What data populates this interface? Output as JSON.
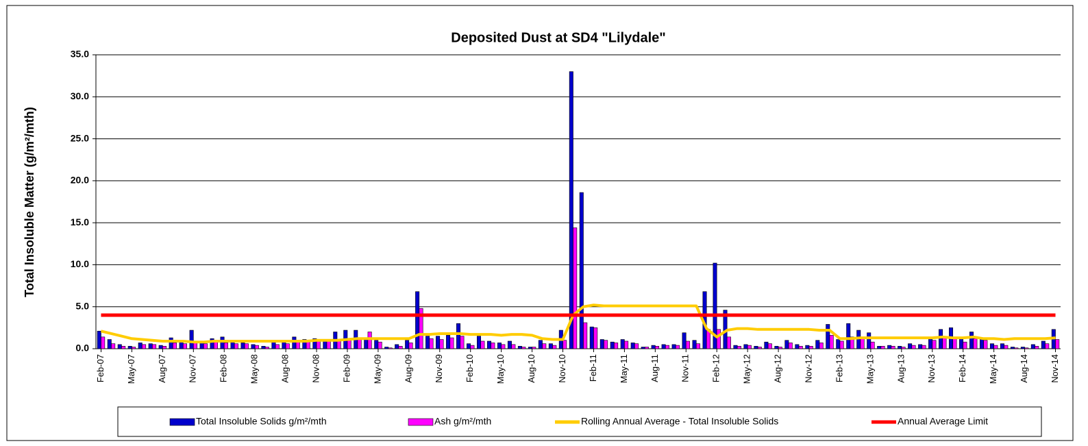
{
  "chart_data": {
    "type": "bar",
    "title": "Deposited Dust at SD4 \"Lilydale\"",
    "y_label": "Total Insoluble Matter  (g/m²/mth)",
    "categories": [
      "Feb-07",
      null,
      null,
      "May-07",
      null,
      null,
      "Aug-07",
      null,
      null,
      "Nov-07",
      null,
      null,
      "Feb-08",
      null,
      null,
      "May-08",
      null,
      null,
      "Aug-08",
      null,
      null,
      "Nov-08",
      null,
      null,
      "Feb-09",
      null,
      null,
      "May-09",
      null,
      null,
      "Aug-09",
      null,
      null,
      "Nov-09",
      null,
      null,
      "Feb-10",
      null,
      null,
      "May-10",
      null,
      null,
      "Aug-10",
      null,
      null,
      "Nov-10",
      null,
      null,
      "Feb-11",
      null,
      null,
      "May-11",
      null,
      null,
      "Aug-11",
      null,
      null,
      "Nov-11",
      null,
      null,
      "Feb-12",
      null,
      null,
      "May-12",
      null,
      null,
      "Aug-12",
      null,
      null,
      "Nov-12",
      null,
      null,
      "Feb-13",
      null,
      null,
      "May-13",
      null,
      null,
      "Aug-13",
      null,
      null,
      "Nov-13",
      null,
      null,
      "Feb-14",
      null,
      null,
      "May-14",
      null,
      null,
      "Aug-14",
      null,
      null,
      "Nov-14"
    ],
    "series": [
      {
        "name": "Total Insoluble Solids  g/m²/mth",
        "type": "bar",
        "color": "#0000cc",
        "values": [
          2.1,
          1.1,
          0.5,
          0.3,
          0.7,
          0.6,
          0.4,
          1.3,
          0.8,
          2.2,
          0.9,
          1.2,
          1.4,
          0.8,
          0.7,
          0.5,
          0.3,
          0.8,
          0.8,
          1.4,
          1.1,
          1.2,
          1.1,
          2.0,
          2.2,
          2.2,
          1.1,
          1.0,
          0.2,
          0.5,
          1.0,
          6.8,
          1.5,
          1.5,
          1.6,
          3.0,
          0.6,
          1.5,
          0.9,
          0.7,
          0.9,
          0.3,
          0.2,
          1.0,
          0.6,
          2.2,
          33.0,
          18.6,
          2.6,
          1.1,
          0.8,
          1.1,
          0.7,
          0.2,
          0.4,
          0.5,
          0.5,
          1.9,
          1.0,
          6.8,
          10.2,
          4.6,
          0.4,
          0.5,
          0.3,
          0.8,
          0.3,
          1.0,
          0.5,
          0.4,
          1.0,
          2.9,
          1.1,
          3.0,
          2.2,
          1.9,
          0.3,
          0.4,
          0.3,
          0.6,
          0.5,
          1.2,
          2.3,
          2.5,
          1.2,
          2.0,
          1.3,
          0.6,
          0.6,
          0.2,
          0.2,
          0.5,
          0.9,
          2.3
        ]
      },
      {
        "name": "Ash  g/m²/mth",
        "type": "bar",
        "color": "#ff00ff",
        "values": [
          1.4,
          0.6,
          0.3,
          0.2,
          0.5,
          0.5,
          0.3,
          0.7,
          0.6,
          0.8,
          0.6,
          0.8,
          0.7,
          0.6,
          0.6,
          0.4,
          0.2,
          0.5,
          0.6,
          0.9,
          0.9,
          1.0,
          0.9,
          1.0,
          1.1,
          1.2,
          2.0,
          0.8,
          0.1,
          0.3,
          0.7,
          4.8,
          1.2,
          1.1,
          1.3,
          1.5,
          0.4,
          0.9,
          0.7,
          0.5,
          0.5,
          0.2,
          0.2,
          0.6,
          0.4,
          1.0,
          14.4,
          3.1,
          2.5,
          1.0,
          0.7,
          0.9,
          0.6,
          0.2,
          0.3,
          0.4,
          0.4,
          0.9,
          0.6,
          2.3,
          2.3,
          1.4,
          0.3,
          0.4,
          0.2,
          0.6,
          0.2,
          0.7,
          0.3,
          0.3,
          0.7,
          1.6,
          0.9,
          1.4,
          1.2,
          0.8,
          0.3,
          0.3,
          0.2,
          0.4,
          0.4,
          1.0,
          1.3,
          1.3,
          0.8,
          1.2,
          1.0,
          0.4,
          0.4,
          0.1,
          0.1,
          0.3,
          0.6,
          1.1
        ]
      },
      {
        "name": "Rolling Annual Average - Total Insoluble Solids",
        "type": "line",
        "color": "#ffcc00",
        "values": [
          2.1,
          1.8,
          1.5,
          1.2,
          1.1,
          1.0,
          0.9,
          0.9,
          0.9,
          0.8,
          0.8,
          0.9,
          0.9,
          0.9,
          0.9,
          0.9,
          0.9,
          0.9,
          0.9,
          0.9,
          0.9,
          1.0,
          1.0,
          1.0,
          1.1,
          1.2,
          1.2,
          1.2,
          1.2,
          1.2,
          1.2,
          1.7,
          1.7,
          1.8,
          1.8,
          1.8,
          1.7,
          1.7,
          1.7,
          1.6,
          1.7,
          1.7,
          1.6,
          1.2,
          1.1,
          1.1,
          4.0,
          5.0,
          5.2,
          5.1,
          5.1,
          5.1,
          5.1,
          5.1,
          5.1,
          5.1,
          5.1,
          5.1,
          5.1,
          2.4,
          1.4,
          2.2,
          2.4,
          2.4,
          2.3,
          2.3,
          2.3,
          2.3,
          2.3,
          2.3,
          2.2,
          2.2,
          1.2,
          1.2,
          1.3,
          1.3,
          1.3,
          1.3,
          1.3,
          1.3,
          1.3,
          1.3,
          1.4,
          1.3,
          1.3,
          1.4,
          1.2,
          1.2,
          1.1,
          1.2,
          1.2,
          1.2,
          1.2,
          1.3
        ]
      },
      {
        "name": "Annual Average Limit",
        "type": "line",
        "color": "#ff0000",
        "values": [
          4,
          4,
          4,
          4,
          4,
          4,
          4,
          4,
          4,
          4,
          4,
          4,
          4,
          4,
          4,
          4,
          4,
          4,
          4,
          4,
          4,
          4,
          4,
          4,
          4,
          4,
          4,
          4,
          4,
          4,
          4,
          4,
          4,
          4,
          4,
          4,
          4,
          4,
          4,
          4,
          4,
          4,
          4,
          4,
          4,
          4,
          4,
          4,
          4,
          4,
          4,
          4,
          4,
          4,
          4,
          4,
          4,
          4,
          4,
          4,
          4,
          4,
          4,
          4,
          4,
          4,
          4,
          4,
          4,
          4,
          4,
          4,
          4,
          4,
          4,
          4,
          4,
          4,
          4,
          4,
          4,
          4,
          4,
          4,
          4,
          4,
          4,
          4,
          4,
          4,
          4,
          4,
          4,
          4
        ]
      }
    ],
    "ylim": [
      0,
      35
    ],
    "yticks": [
      {
        "value": 0,
        "label": "0.0"
      },
      {
        "value": 5,
        "label": "5.0"
      },
      {
        "value": 10,
        "label": "10.0"
      },
      {
        "value": 15,
        "label": "15.0"
      },
      {
        "value": 20,
        "label": "20.0"
      },
      {
        "value": 25,
        "label": "25.0"
      },
      {
        "value": 30,
        "label": "30.0"
      },
      {
        "value": 35,
        "label": "35.0"
      }
    ],
    "grid": true,
    "legend": "bottom"
  }
}
